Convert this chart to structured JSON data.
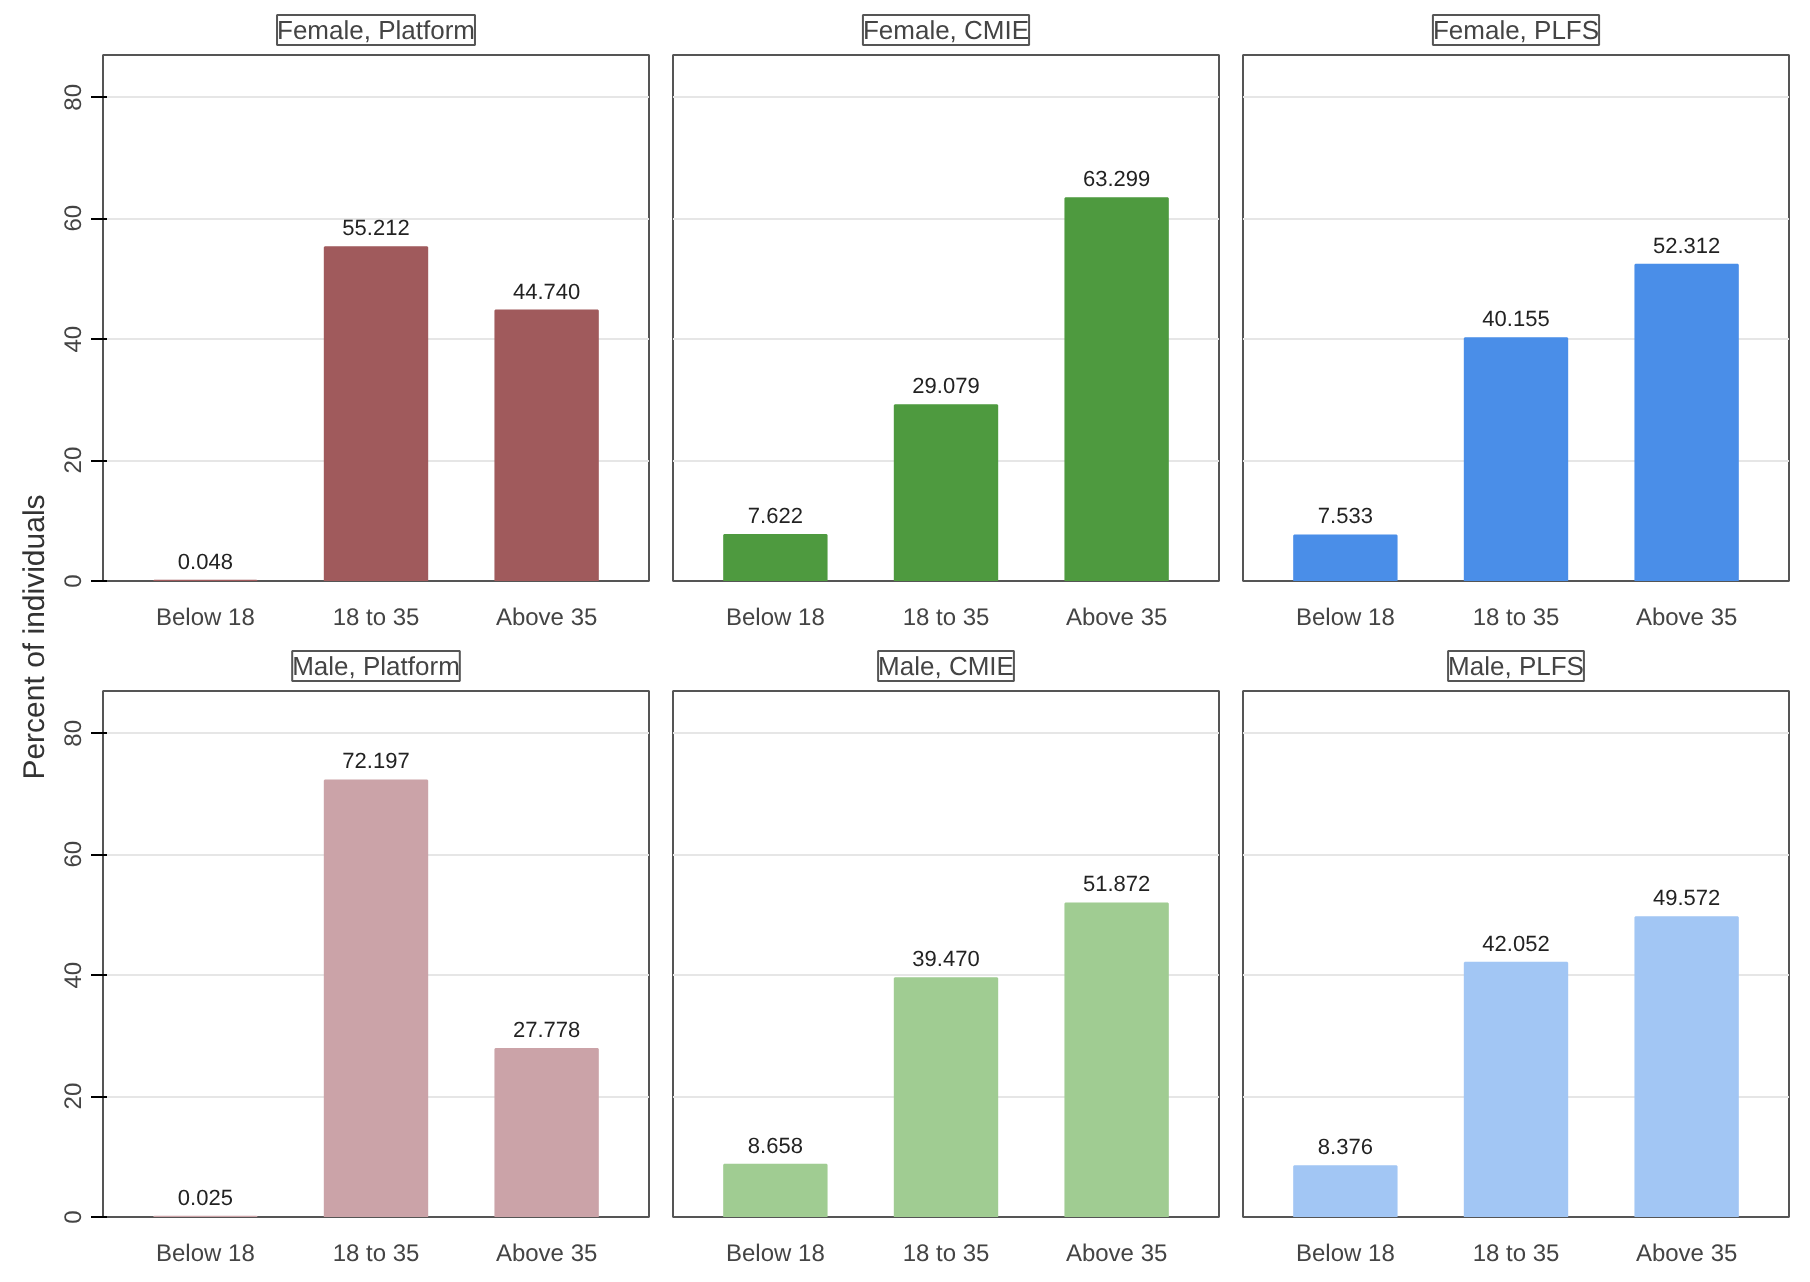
{
  "chart_data": [
    {
      "type": "bar",
      "title": "Female, Platform",
      "ylabel": "Percent of individuals",
      "categories": [
        "Below 18",
        "18 to 35",
        "Above 35"
      ],
      "values": [
        0.048,
        55.212,
        44.74
      ],
      "value_labels": [
        "0.048",
        "55.212",
        "44.740"
      ],
      "color": "#a05a5c",
      "ylim": [
        0,
        87
      ],
      "yticks": [
        0,
        20,
        40,
        60,
        80
      ],
      "grid": "y"
    },
    {
      "type": "bar",
      "title": "Female, CMIE",
      "categories": [
        "Below 18",
        "18 to 35",
        "Above 35"
      ],
      "values": [
        7.622,
        29.079,
        63.299
      ],
      "value_labels": [
        "7.622",
        "29.079",
        "63.299"
      ],
      "color": "#4e9a3f",
      "ylim": [
        0,
        87
      ],
      "yticks": [
        0,
        20,
        40,
        60,
        80
      ],
      "grid": "y",
      "tick_labels": "x"
    },
    {
      "type": "bar",
      "title": "Female, PLFS",
      "categories": [
        "Below 18",
        "18 to 35",
        "Above 35"
      ],
      "values": [
        7.533,
        40.155,
        52.312
      ],
      "value_labels": [
        "7.533",
        "40.155",
        "52.312"
      ],
      "color": "#4a8ee8",
      "ylim": [
        0,
        87
      ],
      "yticks": [
        0,
        20,
        40,
        60,
        80
      ],
      "grid": "y",
      "tick_labels": "x"
    },
    {
      "type": "bar",
      "title": "Male, Platform",
      "categories": [
        "Below 18",
        "18 to 35",
        "Above 35"
      ],
      "values": [
        0.025,
        72.197,
        27.778
      ],
      "value_labels": [
        "0.025",
        "72.197",
        "27.778"
      ],
      "color": "#cba3a8",
      "ylim": [
        0,
        87
      ],
      "yticks": [
        0,
        20,
        40,
        60,
        80
      ],
      "grid": "y"
    },
    {
      "type": "bar",
      "title": "Male, CMIE",
      "categories": [
        "Below 18",
        "18 to 35",
        "Above 35"
      ],
      "values": [
        8.658,
        39.47,
        51.872
      ],
      "value_labels": [
        "8.658",
        "39.470",
        "51.872"
      ],
      "color": "#a0cc92",
      "ylim": [
        0,
        87
      ],
      "yticks": [
        0,
        20,
        40,
        60,
        80
      ],
      "grid": "y",
      "tick_labels": "x"
    },
    {
      "type": "bar",
      "title": "Male, PLFS",
      "categories": [
        "Below 18",
        "18 to 35",
        "Above 35"
      ],
      "values": [
        8.376,
        42.052,
        49.572
      ],
      "value_labels": [
        "8.376",
        "42.052",
        "49.572"
      ],
      "color": "#a2c6f4",
      "ylim": [
        0,
        87
      ],
      "yticks": [
        0,
        20,
        40,
        60,
        80
      ],
      "grid": "y",
      "tick_labels": "x"
    }
  ]
}
